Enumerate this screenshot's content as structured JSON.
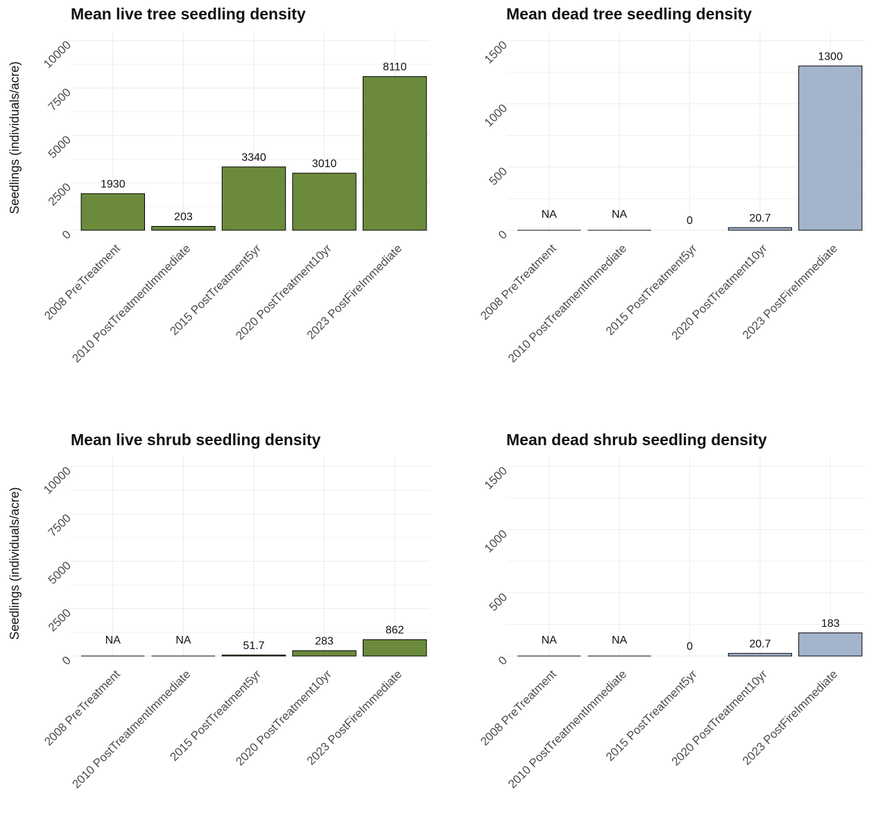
{
  "chart_data": [
    {
      "type": "bar",
      "title": "Mean live tree seedling density",
      "y_label": "Seedlings (individuals/acre)",
      "categories": [
        "2008 PreTreatment",
        "2010 PostTreatmentImmediate",
        "2015 PostTreatment5yr",
        "2020 PostTreatment10yr",
        "2023 PostFireImmediate"
      ],
      "values": [
        1930,
        203,
        3340,
        3010,
        8110
      ],
      "color": "#6b8a3c",
      "ylim": [
        0,
        10500
      ],
      "yticks": [
        0,
        2500,
        5000,
        7500,
        10000
      ],
      "grid": true
    },
    {
      "type": "bar",
      "title": "Mean dead tree seedling density",
      "categories": [
        "2008 PreTreatment",
        "2010 PostTreatmentImmediate",
        "2015 PostTreatment5yr",
        "2020 PostTreatment10yr",
        "2023 PostFireImmediate"
      ],
      "values": [
        null,
        null,
        0,
        20.7,
        1300
      ],
      "value_labels": [
        "NA",
        "NA",
        "0",
        "20.7",
        "1300"
      ],
      "color": "#a3b4cc",
      "ylim": [
        0,
        1575
      ],
      "yticks": [
        0,
        500,
        1000,
        1500
      ],
      "grid": true
    },
    {
      "type": "bar",
      "title": "Mean live shrub seedling density",
      "y_label": "Seedlings (individuals/acre)",
      "categories": [
        "2008 PreTreatment",
        "2010 PostTreatmentImmediate",
        "2015 PostTreatment5yr",
        "2020 PostTreatment10yr",
        "2023 PostFireImmediate"
      ],
      "values": [
        null,
        null,
        51.7,
        283,
        862
      ],
      "value_labels": [
        "NA",
        "NA",
        "51.7",
        "283",
        "862"
      ],
      "color": "#6b8a3c",
      "ylim": [
        0,
        10500
      ],
      "yticks": [
        0,
        2500,
        5000,
        7500,
        10000
      ],
      "grid": true
    },
    {
      "type": "bar",
      "title": "Mean dead shrub seedling density",
      "categories": [
        "2008 PreTreatment",
        "2010 PostTreatmentImmediate",
        "2015 PostTreatment5yr",
        "2020 PostTreatment10yr",
        "2023 PostFireImmediate"
      ],
      "values": [
        null,
        null,
        0,
        20.7,
        183
      ],
      "value_labels": [
        "NA",
        "NA",
        "0",
        "20.7",
        "183"
      ],
      "color": "#a3b4cc",
      "ylim": [
        0,
        1575
      ],
      "yticks": [
        0,
        500,
        1000,
        1500
      ],
      "grid": true
    }
  ]
}
